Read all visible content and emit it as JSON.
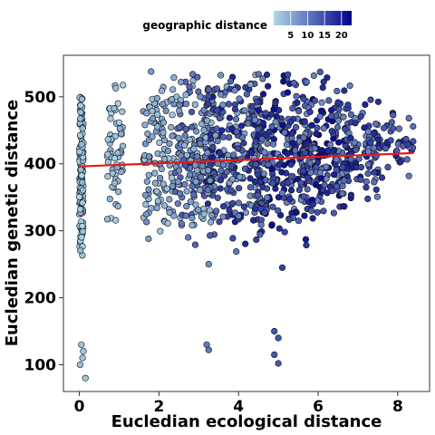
{
  "chart_data": {
    "type": "scatter",
    "xlabel": "Eucledian ecological distance",
    "ylabel": "Eucledian genetic distance",
    "xlim": [
      -0.4,
      8.8
    ],
    "ylim": [
      60,
      562
    ],
    "x_ticks": [
      0,
      2,
      4,
      6,
      8
    ],
    "y_ticks": [
      100,
      200,
      300,
      400,
      500
    ],
    "grid": false,
    "colorbar": {
      "title": "geographic distance",
      "ticks": [
        5,
        10,
        15,
        20
      ],
      "range": [
        0,
        23
      ],
      "color_low": "#add8e6",
      "color_high": "#00008b",
      "placement": "top"
    },
    "trend_line": {
      "color": "#e41a1c",
      "x": [
        0,
        8.4
      ],
      "y": [
        396,
        416
      ]
    },
    "point_clusters": [
      {
        "x": [
          0,
          0.1
        ],
        "y": [
          240,
          530
        ],
        "n": 140,
        "geo": [
          0,
          4
        ]
      },
      {
        "x": [
          0.7,
          1.1
        ],
        "y": [
          300,
          530
        ],
        "n": 60,
        "geo": [
          1,
          5
        ]
      },
      {
        "x": [
          1.6,
          2.4
        ],
        "y": [
          280,
          550
        ],
        "n": 120,
        "geo": [
          2,
          8
        ]
      },
      {
        "x": [
          2.4,
          3.4
        ],
        "y": [
          270,
          550
        ],
        "n": 200,
        "geo": [
          3,
          14
        ]
      },
      {
        "x": [
          3.2,
          4.6
        ],
        "y": [
          260,
          550
        ],
        "n": 260,
        "geo": [
          5,
          20
        ]
      },
      {
        "x": [
          4.4,
          5.8
        ],
        "y": [
          270,
          550
        ],
        "n": 260,
        "geo": [
          8,
          22
        ]
      },
      {
        "x": [
          5.6,
          6.8
        ],
        "y": [
          290,
          550
        ],
        "n": 200,
        "geo": [
          8,
          22
        ]
      },
      {
        "x": [
          6.8,
          7.6
        ],
        "y": [
          330,
          510
        ],
        "n": 80,
        "geo": [
          8,
          20
        ]
      },
      {
        "x": [
          7.6,
          8.4
        ],
        "y": [
          370,
          490
        ],
        "n": 40,
        "geo": [
          10,
          20
        ]
      }
    ],
    "outlier_points": [
      {
        "x": 0.05,
        "y": 130,
        "geo": 2
      },
      {
        "x": 0.1,
        "y": 120,
        "geo": 2
      },
      {
        "x": 0.02,
        "y": 100,
        "geo": 2
      },
      {
        "x": 0.15,
        "y": 80,
        "geo": 2
      },
      {
        "x": 0.08,
        "y": 110,
        "geo": 2
      },
      {
        "x": 3.2,
        "y": 130,
        "geo": 10
      },
      {
        "x": 3.25,
        "y": 122,
        "geo": 10
      },
      {
        "x": 4.9,
        "y": 150,
        "geo": 14
      },
      {
        "x": 5.0,
        "y": 140,
        "geo": 14
      },
      {
        "x": 4.9,
        "y": 115,
        "geo": 14
      },
      {
        "x": 5.0,
        "y": 102,
        "geo": 14
      },
      {
        "x": 5.1,
        "y": 245,
        "geo": 16
      },
      {
        "x": 3.25,
        "y": 250,
        "geo": 8
      }
    ]
  }
}
